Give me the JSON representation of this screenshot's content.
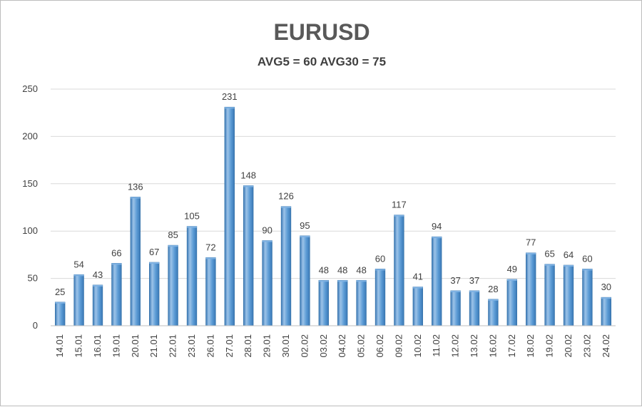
{
  "chart_data": {
    "type": "bar",
    "title": "EURUSD",
    "subtitle": "AVG5 = 60 AVG30 = 75",
    "categories": [
      "14.01",
      "15.01",
      "16.01",
      "19.01",
      "20.01",
      "21.01",
      "22.01",
      "23.01",
      "26.01",
      "27.01",
      "28.01",
      "29.01",
      "30.01",
      "02.02",
      "03.02",
      "04.02",
      "05.02",
      "06.02",
      "09.02",
      "10.02",
      "11.02",
      "12.02",
      "13.02",
      "16.02",
      "17.02",
      "18.02",
      "19.02",
      "20.02",
      "23.02",
      "24.02"
    ],
    "values": [
      25,
      54,
      43,
      66,
      136,
      67,
      85,
      105,
      72,
      231,
      148,
      90,
      126,
      95,
      48,
      48,
      48,
      60,
      117,
      41,
      94,
      37,
      37,
      28,
      49,
      77,
      65,
      64,
      60,
      30
    ],
    "yticks": [
      0,
      50,
      100,
      150,
      200,
      250
    ],
    "ylim": [
      0,
      250
    ],
    "grid": true,
    "legend": "none",
    "bar_color": "#5b9bd5",
    "bar_shade": "#3a78b5",
    "bar_highlight": "#9cc3e8"
  }
}
